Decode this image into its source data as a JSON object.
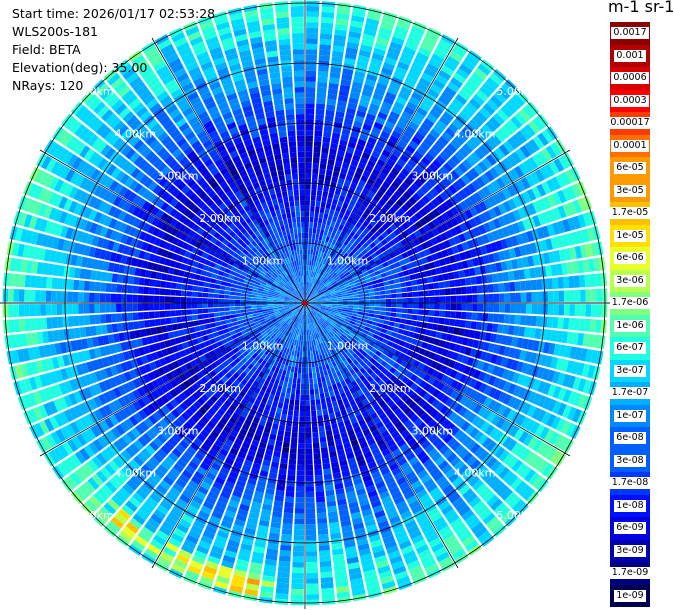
{
  "info": {
    "start_time": "Start time: 2026/01/17 02:53:28",
    "instrument": "WLS200s-181",
    "field": "Field: BETA",
    "elevation": "Elevation(deg): 35.00",
    "nrays": "NRays: 120"
  },
  "colorbar": {
    "title": "m-1 sr-1",
    "colors": [
      "#8b0000",
      "#b20000",
      "#d80000",
      "#ff0000",
      "#ff3c00",
      "#ff6e00",
      "#ff9a00",
      "#ffc000",
      "#ffe000",
      "#e8ff2a",
      "#b8ff50",
      "#80ff80",
      "#50ffb0",
      "#20ffe0",
      "#00d8ff",
      "#00b0ff",
      "#0088ff",
      "#0060ff",
      "#0038ff",
      "#0010ff",
      "#0000e0",
      "#0000b0",
      "#000080",
      "#000050"
    ],
    "labels": [
      "0.0017",
      "0.001",
      "0.0006",
      "0.0003",
      "0.00017",
      "0.0001",
      "6e-05",
      "3e-05",
      "1.7e-05",
      "1e-05",
      "6e-06",
      "3e-06",
      "1.7e-06",
      "1e-06",
      "6e-07",
      "3e-07",
      "1.7e-07",
      "1e-07",
      "6e-08",
      "3e-08",
      "1.7e-08",
      "1e-08",
      "6e-09",
      "3e-09",
      "1.7e-09",
      "1e-09"
    ]
  },
  "chart_data": {
    "type": "heatmap",
    "projection": "polar (PPI)",
    "rays": 120,
    "range_rings": [
      "1.00km",
      "2.00km",
      "3.00km",
      "4.00km",
      "5.00km"
    ],
    "range_rings_km": [
      1,
      2,
      3,
      4,
      5
    ],
    "max_range_km": 5.1,
    "spoke_count": 12,
    "ring_label_text": {
      "1": "1.00km",
      "2": "2.00km",
      "3": "3.00km",
      "4": "4.00km",
      "5": "5.00km"
    },
    "beta_profile_by_range_km": [
      {
        "range_km": 0.5,
        "beta": "6e-08"
      },
      {
        "range_km": 1.5,
        "beta": "1.7e-08"
      },
      {
        "range_km": 2.5,
        "beta": "6e-09"
      },
      {
        "range_km": 3.5,
        "beta": "6e-08"
      },
      {
        "range_km": 4.5,
        "beta": "3e-07"
      },
      {
        "range_km": 5.0,
        "beta": "6e-07"
      }
    ],
    "scale": "log"
  }
}
